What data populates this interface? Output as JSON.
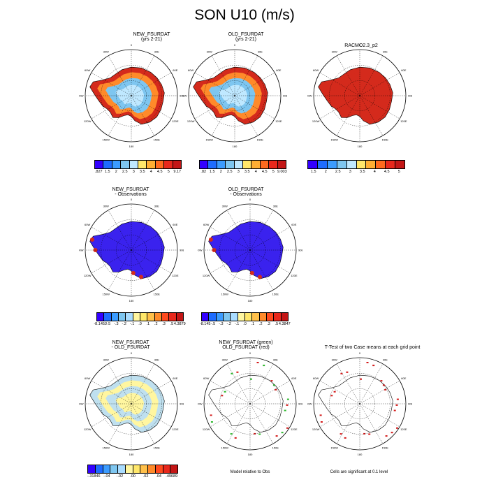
{
  "title": "SON U10 (m/s)",
  "panels": [
    {
      "t1": "NEW_FSURDAT",
      "t2": "(yrs 2-21)",
      "style": "model"
    },
    {
      "t1": "OLD_FSURDAT",
      "t2": "(yrs 2-21)",
      "style": "model"
    },
    {
      "t1": "RACMO2.3_p2",
      "t2": "",
      "style": "obs"
    },
    {
      "t1": "NEW_FSURDAT",
      "t2": "- Observations",
      "style": "bias"
    },
    {
      "t1": "OLD_FSURDAT",
      "t2": "- Observations",
      "style": "bias"
    },
    {
      "t1": "NEW_FSURDAT",
      "t2": "- OLD_FSURDAT",
      "style": "diff"
    },
    {
      "t1": "NEW_FSURDAT (green)",
      "t2": "OLD_FSURDAT (red)",
      "style": "contour"
    },
    {
      "t1": "T-Test of two Case means at each grid point",
      "t2": "",
      "style": "ttest"
    }
  ],
  "lon_labels": [
    "0",
    "30E",
    "60E",
    "90E",
    "120E",
    "150E",
    "180",
    "150W",
    "120W",
    "90W",
    "60W",
    "30W"
  ],
  "colorbars": {
    "cb1": {
      "colors": [
        "#3300ff",
        "#1e6cff",
        "#3c9cff",
        "#7ec6f0",
        "#bfe8ff",
        "#ffe76a",
        "#ffae33",
        "#ff6a1e",
        "#e8281c",
        "#c41616"
      ],
      "ticks": [
        ".827",
        "1.5",
        "2",
        "2.5",
        "3",
        "3.5",
        "4",
        "4.5",
        "5",
        "9.17"
      ]
    },
    "cb2": {
      "colors": [
        "#3300ff",
        "#1e6cff",
        "#3c9cff",
        "#7ec6f0",
        "#bfe8ff",
        "#ffe76a",
        "#ffae33",
        "#ff6a1e",
        "#e8281c",
        "#c41616"
      ],
      "ticks": [
        ".82",
        "1.5",
        "2",
        "2.5",
        "3",
        "3.5",
        "4",
        "4.5",
        "5",
        "9.003"
      ]
    },
    "cb3": {
      "colors": [
        "#3300ff",
        "#1e6cff",
        "#3c9cff",
        "#7ec6f0",
        "#bfe8ff",
        "#ffe76a",
        "#ffae33",
        "#ff6a1e",
        "#e8281c",
        "#c41616"
      ],
      "ticks": [
        "1.5",
        "2",
        "2.5",
        "3",
        "3.5",
        "4",
        "4.5",
        "5"
      ]
    },
    "cb4": {
      "colors": [
        "#3300ff",
        "#1e6cff",
        "#3c9cff",
        "#7ec6f0",
        "#a9dcff",
        "#fff6a0",
        "#ffe76a",
        "#ffc04a",
        "#ff8a2a",
        "#ff4a1e",
        "#e8281c",
        "#c41616"
      ],
      "ticks": [
        "-8.1452",
        "-.5",
        "-.3",
        "-.2",
        "-.1",
        ".0",
        ".1",
        ".2",
        ".3",
        ".5",
        "4.3879"
      ]
    },
    "cb5": {
      "colors": [
        "#3300ff",
        "#1e6cff",
        "#3c9cff",
        "#7ec6f0",
        "#a9dcff",
        "#fff6a0",
        "#ffe76a",
        "#ffc04a",
        "#ff8a2a",
        "#ff4a1e",
        "#e8281c",
        "#c41616"
      ],
      "ticks": [
        "-8.145",
        "-.5",
        "-.3",
        "-.2",
        "-.1",
        ".0",
        ".1",
        ".2",
        ".3",
        ".5",
        "4.3847"
      ]
    },
    "cb6": {
      "colors": [
        "#3300ff",
        "#1e6cff",
        "#3c9cff",
        "#7ec6f0",
        "#a9dcff",
        "#fff6a0",
        "#ffe76a",
        "#ffc04a",
        "#ff8a2a",
        "#ff4a1e",
        "#e8281c",
        "#c41616"
      ],
      "ticks": [
        "-.31846",
        "-.04",
        "-.02",
        ".00",
        ".02",
        ".04",
        ".49689"
      ]
    }
  },
  "notes": {
    "contour": "Model relative to Obs",
    "ttest": "Cells are significant at 0.1 level"
  },
  "chart_data": {
    "type": "heatmap",
    "title": "SON U10 (m/s)",
    "projection": "south polar stereographic",
    "grid": true,
    "panel_titles": [
      "NEW_FSURDAT (yrs 2-21)",
      "OLD_FSURDAT (yrs 2-21)",
      "RACMO2.3_p2",
      "NEW_FSURDAT - Observations",
      "OLD_FSURDAT - Observations",
      "NEW_FSURDAT - OLD_FSURDAT",
      "NEW_FSURDAT (green) OLD_FSURDAT (red)",
      "T-Test of two Case means at each grid point"
    ],
    "colorbar_ranges": [
      [
        0.827,
        9.17
      ],
      [
        0.82,
        9.003
      ],
      [
        1.5,
        5
      ],
      [
        -8.1452,
        4.3879
      ],
      [
        -8.145,
        4.3847
      ],
      [
        -0.31846,
        0.49689
      ]
    ]
  }
}
